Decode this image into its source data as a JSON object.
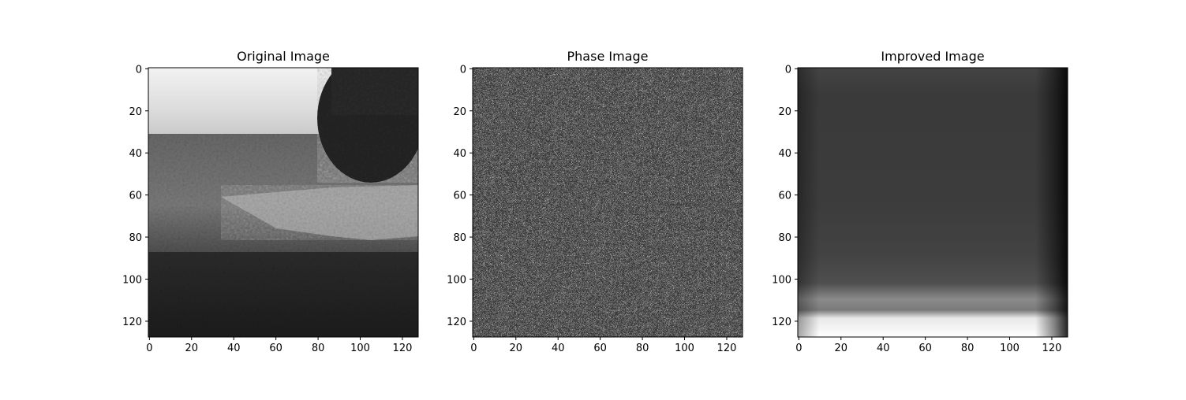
{
  "chart_data": [
    {
      "type": "heatmap",
      "title": "Original Image",
      "content": "photo",
      "colormap": "gray",
      "xlim": [
        0,
        127
      ],
      "ylim": [
        127,
        0
      ],
      "xticks": [
        0,
        20,
        40,
        60,
        80,
        100,
        120
      ],
      "yticks": [
        0,
        20,
        40,
        60,
        80,
        100,
        120
      ]
    },
    {
      "type": "heatmap",
      "title": "Phase Image",
      "content": "random-noise",
      "colormap": "gray",
      "xlim": [
        0,
        127
      ],
      "ylim": [
        127,
        0
      ],
      "xticks": [
        0,
        20,
        40,
        60,
        80,
        100,
        120
      ],
      "yticks": [
        0,
        20,
        40,
        60,
        80,
        100,
        120
      ]
    },
    {
      "type": "heatmap",
      "title": "Improved Image",
      "content": "smooth-gradient",
      "colormap": "gray",
      "xlim": [
        0,
        127
      ],
      "ylim": [
        127,
        0
      ],
      "xticks": [
        0,
        20,
        40,
        60,
        80,
        100,
        120
      ],
      "yticks": [
        0,
        20,
        40,
        60,
        80,
        100,
        120
      ]
    }
  ]
}
